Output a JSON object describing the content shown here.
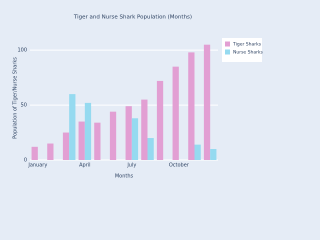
{
  "chart_data": {
    "type": "bar",
    "title": "Tiger and Nurse Shark Population (Months)",
    "x_label": "Months",
    "y_label": "Population of Tiger/Nurse Sharks",
    "categories": [
      "January",
      null,
      null,
      "April",
      null,
      null,
      "July",
      null,
      null,
      "October",
      null,
      null
    ],
    "series": [
      {
        "name": "Tiger Sharks",
        "color": "#e29fd3",
        "values": [
          12,
          15,
          25,
          35,
          34,
          44,
          49,
          55,
          72,
          85,
          98,
          105
        ]
      },
      {
        "name": "Nurse Sharks",
        "color": "#95daf0",
        "values": [
          null,
          null,
          60,
          52,
          null,
          null,
          38,
          20,
          null,
          null,
          14,
          10
        ]
      }
    ],
    "ylim": [
      0,
      112
    ],
    "yticks": [
      0,
      50,
      100
    ],
    "grid": true,
    "legend": "top-right"
  }
}
